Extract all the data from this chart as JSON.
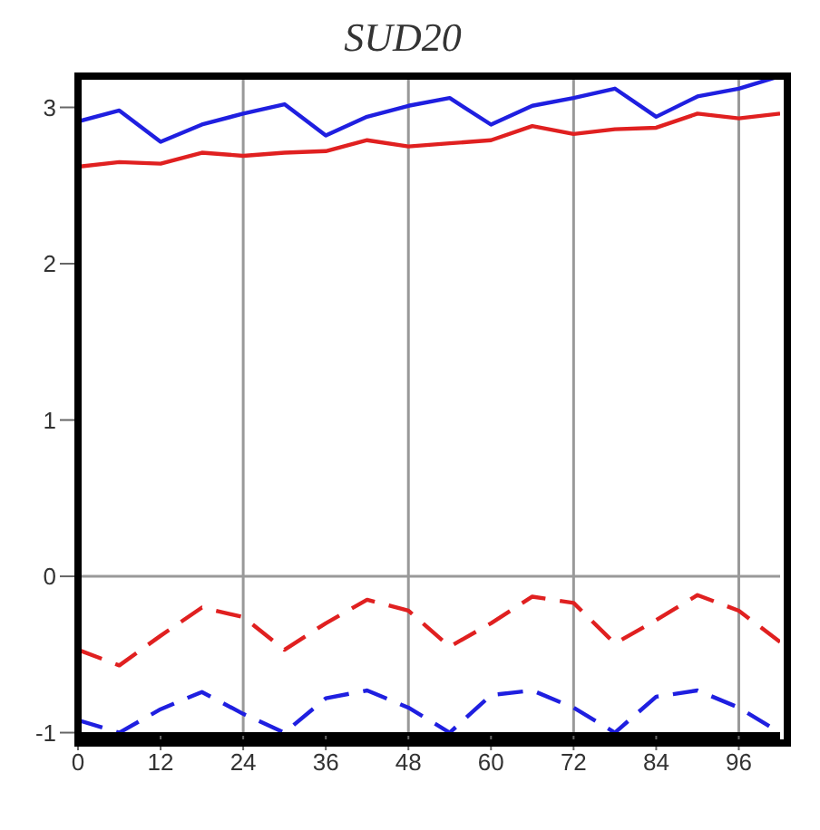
{
  "chart_data": {
    "type": "line",
    "title": "SUD20",
    "x": [
      0,
      6,
      12,
      18,
      24,
      30,
      36,
      42,
      48,
      54,
      60,
      66,
      72,
      78,
      84,
      90,
      96,
      102
    ],
    "series": [
      {
        "color": "#1f1fe0",
        "line_style": "solid",
        "values": [
          2.91,
          2.98,
          2.78,
          2.89,
          2.96,
          3.02,
          2.82,
          2.94,
          3.01,
          3.06,
          2.89,
          3.01,
          3.06,
          3.12,
          2.94,
          3.07,
          3.12,
          3.2
        ]
      },
      {
        "color": "#e02020",
        "line_style": "solid",
        "values": [
          2.62,
          2.65,
          2.64,
          2.71,
          2.69,
          2.71,
          2.72,
          2.79,
          2.75,
          2.77,
          2.79,
          2.88,
          2.83,
          2.86,
          2.87,
          2.96,
          2.93,
          2.96
        ]
      },
      {
        "color": "#e02020",
        "line_style": "dashed",
        "values": [
          -0.47,
          -0.57,
          -0.38,
          -0.2,
          -0.26,
          -0.47,
          -0.3,
          -0.15,
          -0.22,
          -0.45,
          -0.3,
          -0.13,
          -0.17,
          -0.43,
          -0.28,
          -0.12,
          -0.22,
          -0.42
        ]
      },
      {
        "color": "#1f1fe0",
        "line_style": "dashed",
        "values": [
          -0.92,
          -1.0,
          -0.85,
          -0.74,
          -0.88,
          -1.0,
          -0.78,
          -0.73,
          -0.84,
          -1.0,
          -0.76,
          -0.73,
          -0.84,
          -1.0,
          -0.77,
          -0.73,
          -0.84,
          -1.0
        ]
      }
    ],
    "xlim": [
      0,
      102
    ],
    "xticks": [
      0,
      12,
      24,
      36,
      48,
      60,
      72,
      84,
      96
    ],
    "ylim": [
      -1.02,
      3.2
    ],
    "yticks": [
      -1,
      0,
      1,
      2,
      3
    ],
    "ref_lines": [
      {
        "axis": "x",
        "value": 24
      },
      {
        "axis": "x",
        "value": 48
      },
      {
        "axis": "x",
        "value": 72
      },
      {
        "axis": "x",
        "value": 96
      },
      {
        "axis": "y",
        "value": 0
      }
    ],
    "marker": "none"
  }
}
